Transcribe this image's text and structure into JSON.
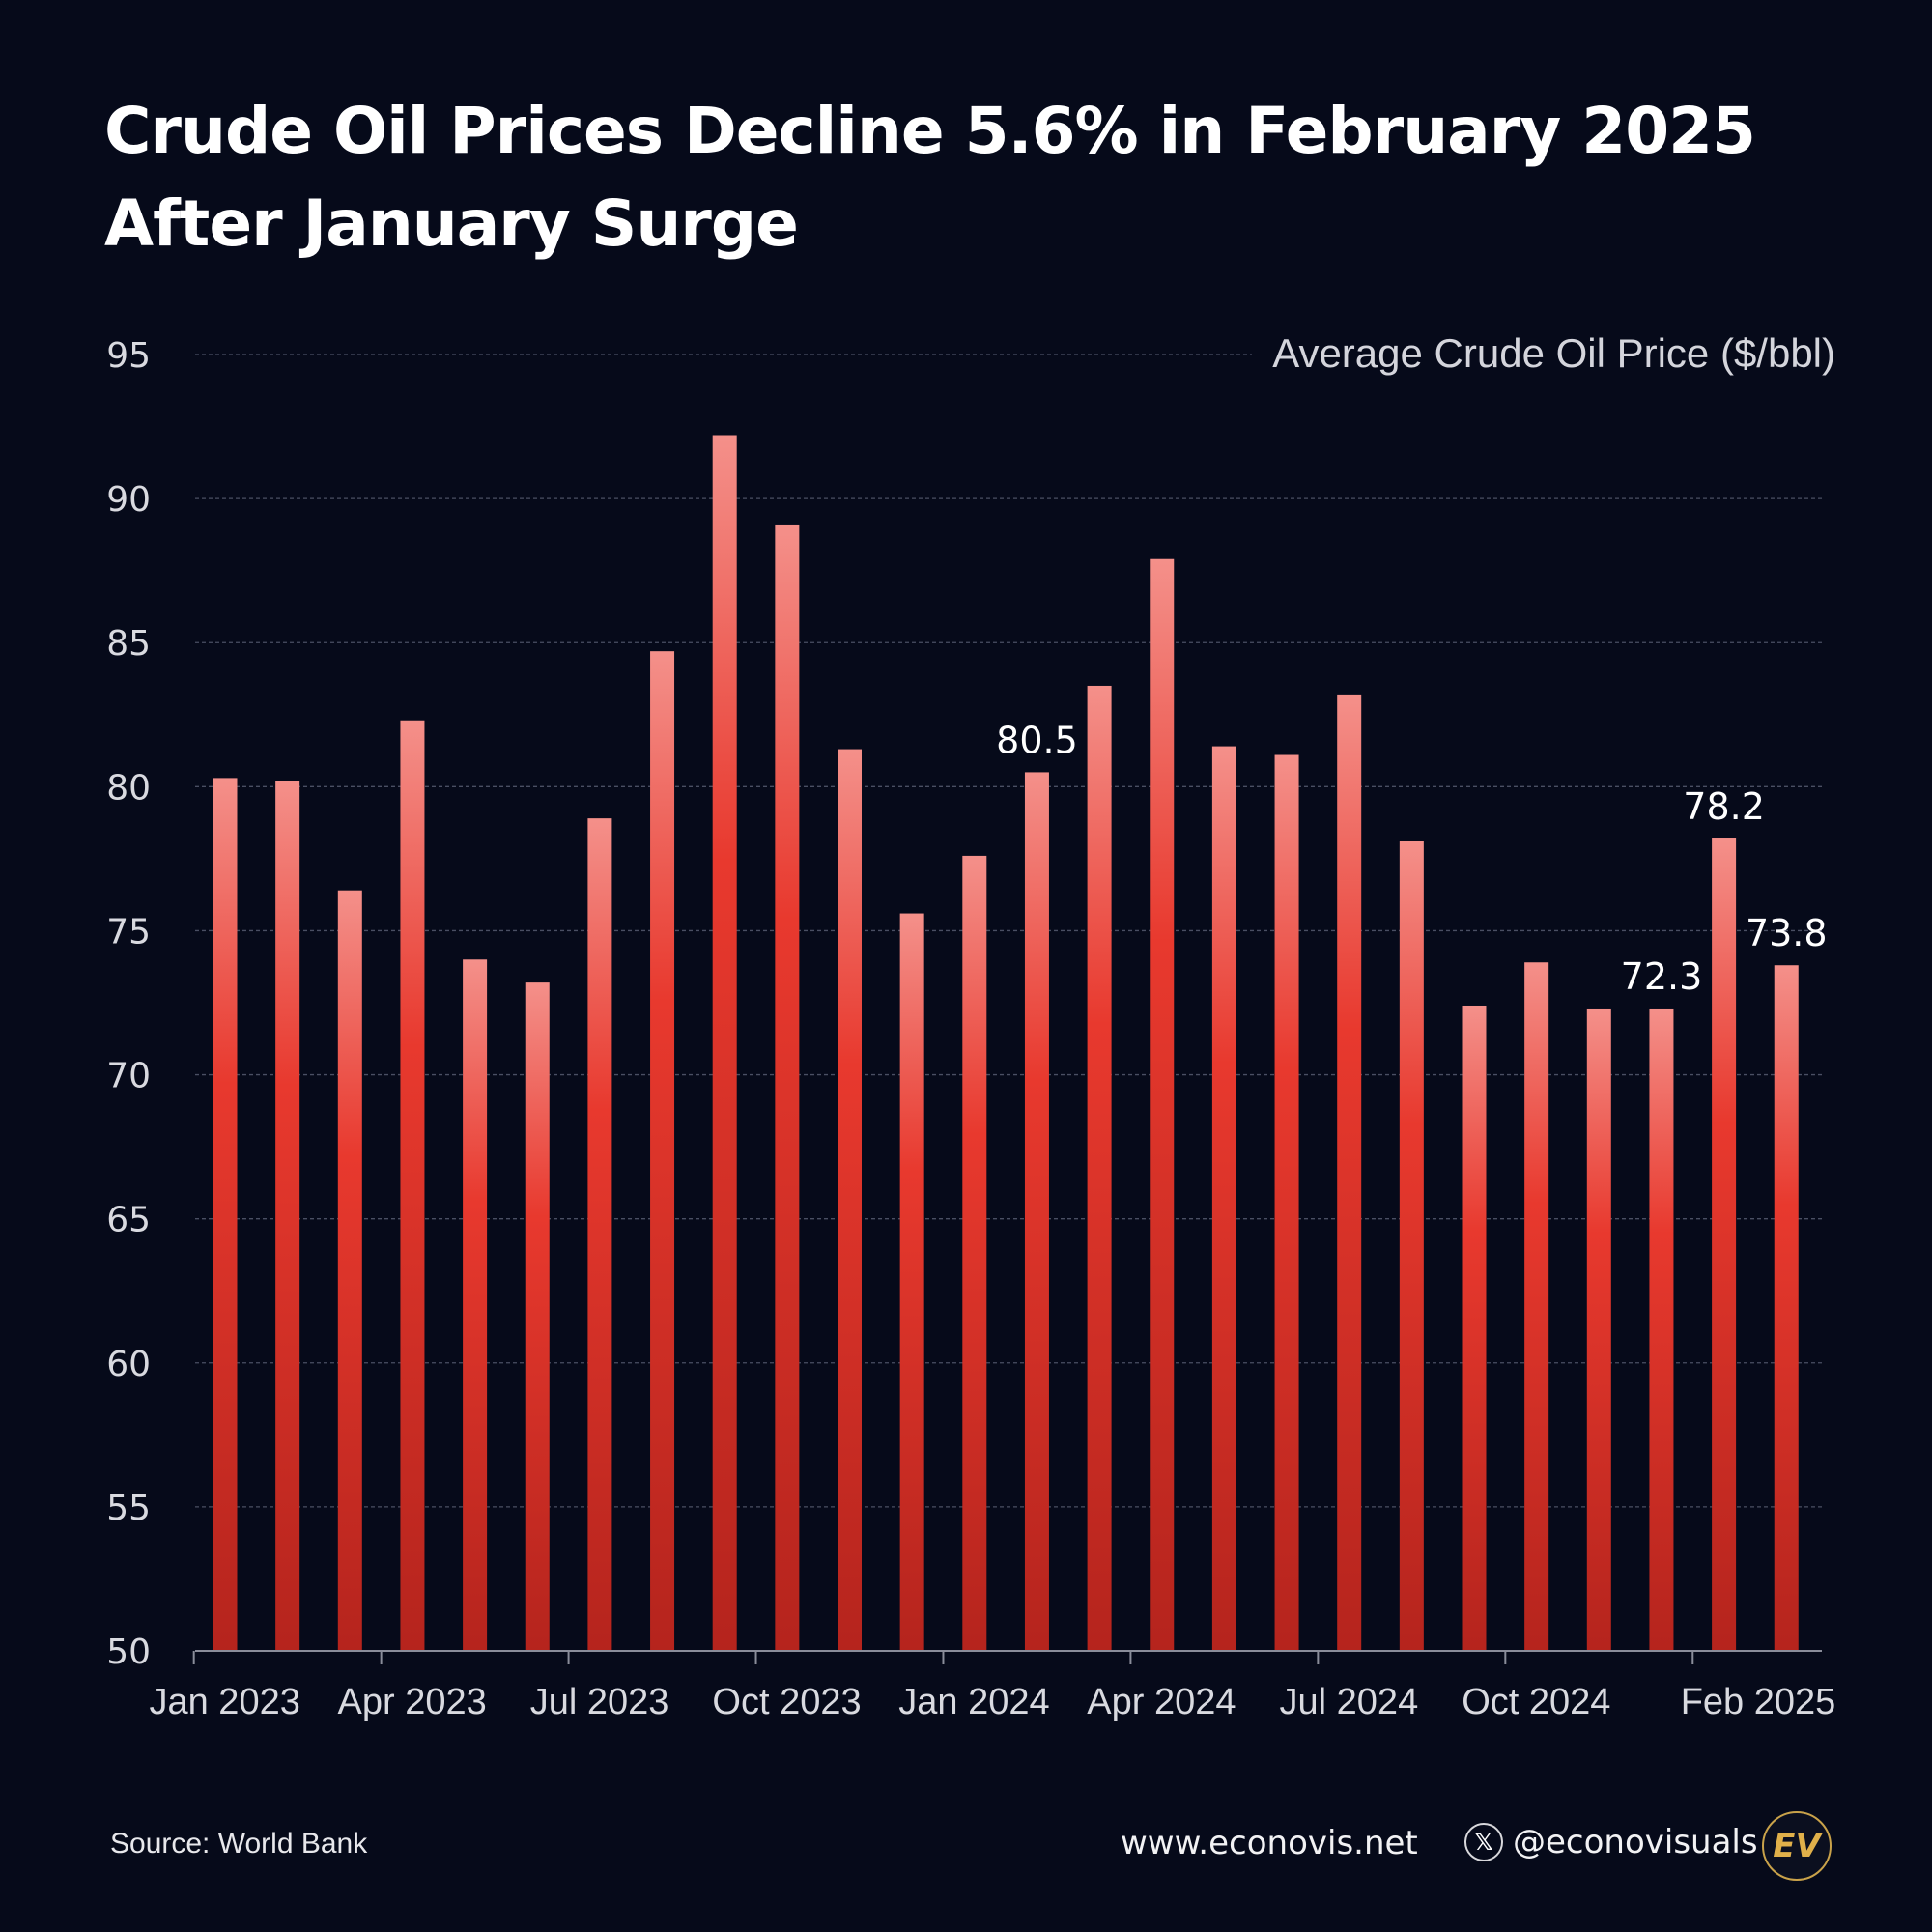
{
  "title_lines": [
    "Crude Oil Prices Decline 5.6% in February 2025",
    "After January Surge"
  ],
  "footer": {
    "source": "Source: World Bank",
    "website": "www.econovis.net",
    "handle": "@econovisuals",
    "x_icon": "x-icon",
    "logo_text": "EV"
  },
  "colors": {
    "background": "#060a1a",
    "bar_light": "#f4908a",
    "bar_mid": "#e8392e",
    "bar_dark": "#b5241d",
    "grid": "#4a4f63",
    "axis_text": "#d9dae0"
  },
  "chart_data": {
    "type": "bar",
    "series_label": "Average Crude Oil Price ($/bbl)",
    "categories": [
      "Jan 2023",
      "Feb 2023",
      "Mar 2023",
      "Apr 2023",
      "May 2023",
      "Jun 2023",
      "Jul 2023",
      "Aug 2023",
      "Sep 2023",
      "Oct 2023",
      "Nov 2023",
      "Dec 2023",
      "Jan 2024",
      "Feb 2024",
      "Mar 2024",
      "Apr 2024",
      "May 2024",
      "Jun 2024",
      "Jul 2024",
      "Aug 2024",
      "Sep 2024",
      "Oct 2024",
      "Nov 2024",
      "Dec 2024",
      "Jan 2025",
      "Feb 2025"
    ],
    "values": [
      80.3,
      80.2,
      76.4,
      82.3,
      74.0,
      73.2,
      78.9,
      84.7,
      92.2,
      89.1,
      81.3,
      75.6,
      77.6,
      80.5,
      83.5,
      87.9,
      81.4,
      81.1,
      83.2,
      78.1,
      72.4,
      73.9,
      72.3,
      72.3,
      78.2,
      73.8
    ],
    "data_labels": [
      {
        "index": 13,
        "text": "80.5"
      },
      {
        "index": 23,
        "text": "72.3"
      },
      {
        "index": 24,
        "text": "78.2"
      },
      {
        "index": 25,
        "text": "73.8"
      }
    ],
    "x_ticks": [
      {
        "index": 0,
        "label": "Jan 2023"
      },
      {
        "index": 3,
        "label": "Apr 2023"
      },
      {
        "index": 6,
        "label": "Jul 2023"
      },
      {
        "index": 9,
        "label": "Oct 2023"
      },
      {
        "index": 12,
        "label": "Jan 2024"
      },
      {
        "index": 15,
        "label": "Apr 2024"
      },
      {
        "index": 18,
        "label": "Jul 2024"
      },
      {
        "index": 21,
        "label": "Oct 2024"
      },
      {
        "index": 25,
        "label": "Feb 2025"
      }
    ],
    "y_ticks": [
      50,
      55,
      60,
      65,
      70,
      75,
      80,
      85,
      90,
      95
    ],
    "ylim": [
      50,
      95
    ],
    "grid": true,
    "legend": "top-right"
  }
}
